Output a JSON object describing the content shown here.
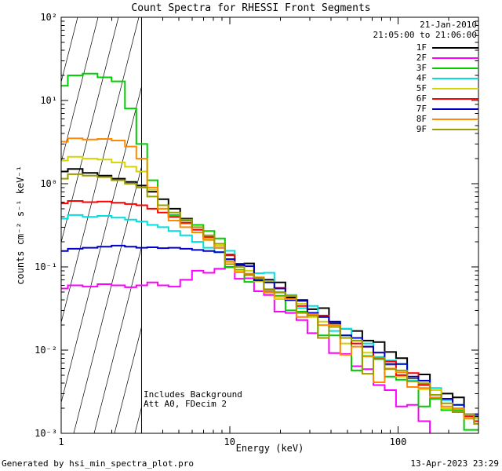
{
  "title": "Count Spectra for RHESSI Front Segments",
  "header": {
    "date": "21-Jan-2010",
    "time_range": "21:05:00 to 21:06:00"
  },
  "annotations": {
    "background_note": "Includes Background",
    "attenuator_note": "Att A0, FDecim 2"
  },
  "footer": {
    "generated_by": "Generated by hsi_min_spectra_plot.pro",
    "timestamp": "13-Apr-2023 23:29"
  },
  "chart_data": {
    "type": "line",
    "mode": "step",
    "title": "Count Spectra for RHESSI Front Segments",
    "xlabel": "Energy (keV)",
    "ylabel": "counts cm⁻² s⁻¹ keV⁻¹",
    "xscale": "log",
    "yscale": "log",
    "xlim": [
      1,
      300
    ],
    "ylim": [
      0.001,
      100
    ],
    "x_tick_values": [
      1,
      10,
      100
    ],
    "x_tick_labels": [
      "1",
      "10",
      "100"
    ],
    "y_tick_values": [
      100,
      10,
      1,
      0.1,
      0.01,
      0.001
    ],
    "y_tick_labels": [
      "10²",
      "10¹",
      "10⁰",
      "10⁻¹",
      "10⁻²",
      "10⁻³"
    ],
    "legend_position": "top-right",
    "hatch_region": {
      "xmin": 1,
      "xmax": 3
    },
    "x": [
      1.0,
      1.2,
      1.5,
      1.8,
      2.2,
      2.6,
      3.0,
      3.5,
      4.0,
      4.7,
      5.5,
      6.5,
      7.5,
      8.8,
      10,
      11.5,
      13,
      15,
      17,
      20,
      23,
      27,
      31,
      36,
      42,
      49,
      57,
      66,
      77,
      90,
      105,
      122,
      143,
      167,
      195,
      228,
      266,
      300
    ],
    "series": [
      {
        "name": "1F",
        "color": "#000000",
        "values": [
          1.4,
          1.5,
          1.35,
          1.25,
          1.15,
          1.05,
          0.95,
          0.8,
          0.65,
          0.5,
          0.38,
          0.28,
          0.22,
          0.17,
          0.14,
          0.105,
          0.11,
          0.07,
          0.07,
          0.065,
          0.043,
          0.04,
          0.031,
          0.032,
          0.021,
          0.018,
          0.017,
          0.013,
          0.0125,
          0.0095,
          0.008,
          0.0046,
          0.0051,
          0.0033,
          0.003,
          0.0027,
          0.0016,
          0.0016
        ]
      },
      {
        "name": "2F",
        "color": "#ff00ff",
        "values": [
          0.055,
          0.06,
          0.058,
          0.062,
          0.06,
          0.057,
          0.06,
          0.065,
          0.06,
          0.058,
          0.07,
          0.09,
          0.085,
          0.095,
          0.1,
          0.072,
          0.073,
          0.051,
          0.046,
          0.029,
          0.028,
          0.023,
          0.016,
          0.014,
          0.0092,
          0.009,
          0.0064,
          0.0059,
          0.0038,
          0.0033,
          0.0021,
          0.0022,
          0.0014,
          0.0009,
          0.00085,
          0.00047,
          0.00081,
          0.00047
        ]
      },
      {
        "name": "3F",
        "color": "#00cc00",
        "values": [
          15,
          20,
          21,
          19,
          17,
          8,
          3,
          1.1,
          0.55,
          0.42,
          0.36,
          0.32,
          0.27,
          0.22,
          0.099,
          0.092,
          0.066,
          0.071,
          0.05,
          0.045,
          0.03,
          0.029,
          0.028,
          0.015,
          0.015,
          0.015,
          0.0057,
          0.0085,
          0.0078,
          0.0048,
          0.0044,
          0.0043,
          0.0021,
          0.0026,
          0.0019,
          0.0019,
          0.0011,
          0.0011
        ]
      },
      {
        "name": "4F",
        "color": "#00dede",
        "values": [
          0.38,
          0.42,
          0.4,
          0.41,
          0.39,
          0.37,
          0.35,
          0.32,
          0.3,
          0.27,
          0.24,
          0.2,
          0.17,
          0.15,
          0.156,
          0.108,
          0.083,
          0.084,
          0.085,
          0.05,
          0.046,
          0.032,
          0.034,
          0.025,
          0.017,
          0.018,
          0.013,
          0.012,
          0.0083,
          0.0075,
          0.0068,
          0.0043,
          0.0039,
          0.0035,
          0.0025,
          0.0022,
          0.0016,
          0.0015
        ]
      },
      {
        "name": "5F",
        "color": "#d4d400",
        "values": [
          1.9,
          2.1,
          2.0,
          1.95,
          1.8,
          1.6,
          1.4,
          0.85,
          0.5,
          0.4,
          0.33,
          0.28,
          0.22,
          0.18,
          0.12,
          0.09,
          0.09,
          0.067,
          0.066,
          0.041,
          0.041,
          0.036,
          0.025,
          0.022,
          0.02,
          0.012,
          0.013,
          0.0093,
          0.0094,
          0.0066,
          0.0048,
          0.0047,
          0.0034,
          0.0033,
          0.002,
          0.002,
          0.0015,
          0.0015
        ]
      },
      {
        "name": "6F",
        "color": "#ff0000",
        "values": [
          0.58,
          0.62,
          0.6,
          0.61,
          0.59,
          0.57,
          0.55,
          0.5,
          0.45,
          0.4,
          0.34,
          0.28,
          0.23,
          0.19,
          0.138,
          0.109,
          0.08,
          0.074,
          0.053,
          0.056,
          0.04,
          0.034,
          0.026,
          0.026,
          0.019,
          0.014,
          0.012,
          0.011,
          0.008,
          0.0073,
          0.005,
          0.0053,
          0.0038,
          0.0029,
          0.0026,
          0.0018,
          0.0016,
          0.0014
        ]
      },
      {
        "name": "7F",
        "color": "#0000cc",
        "values": [
          0.155,
          0.165,
          0.17,
          0.175,
          0.18,
          0.175,
          0.17,
          0.172,
          0.168,
          0.17,
          0.165,
          0.16,
          0.155,
          0.15,
          0.124,
          0.108,
          0.102,
          0.069,
          0.065,
          0.055,
          0.04,
          0.039,
          0.028,
          0.025,
          0.022,
          0.015,
          0.014,
          0.011,
          0.0093,
          0.0068,
          0.0068,
          0.0048,
          0.0043,
          0.0029,
          0.0026,
          0.0022,
          0.0017,
          0.0017
        ]
      },
      {
        "name": "8F",
        "color": "#ff8800",
        "values": [
          3.2,
          3.5,
          3.4,
          3.45,
          3.3,
          2.8,
          2.0,
          0.9,
          0.5,
          0.36,
          0.3,
          0.26,
          0.21,
          0.17,
          0.115,
          0.086,
          0.082,
          0.075,
          0.049,
          0.044,
          0.041,
          0.025,
          0.027,
          0.02,
          0.02,
          0.0088,
          0.011,
          0.0084,
          0.0041,
          0.006,
          0.0054,
          0.0036,
          0.0035,
          0.0027,
          0.0021,
          0.002,
          0.0015,
          0.0013
        ]
      },
      {
        "name": "9F",
        "color": "#9c9c00",
        "values": [
          1.15,
          1.3,
          1.25,
          1.2,
          1.1,
          1.0,
          0.9,
          0.7,
          0.55,
          0.45,
          0.37,
          0.3,
          0.24,
          0.19,
          0.108,
          0.1,
          0.081,
          0.074,
          0.054,
          0.049,
          0.045,
          0.028,
          0.026,
          0.014,
          0.019,
          0.014,
          0.013,
          0.0052,
          0.0081,
          0.0059,
          0.0057,
          0.0042,
          0.004,
          0.0029,
          0.0023,
          0.0018,
          0.0017,
          0.0013
        ]
      }
    ]
  }
}
